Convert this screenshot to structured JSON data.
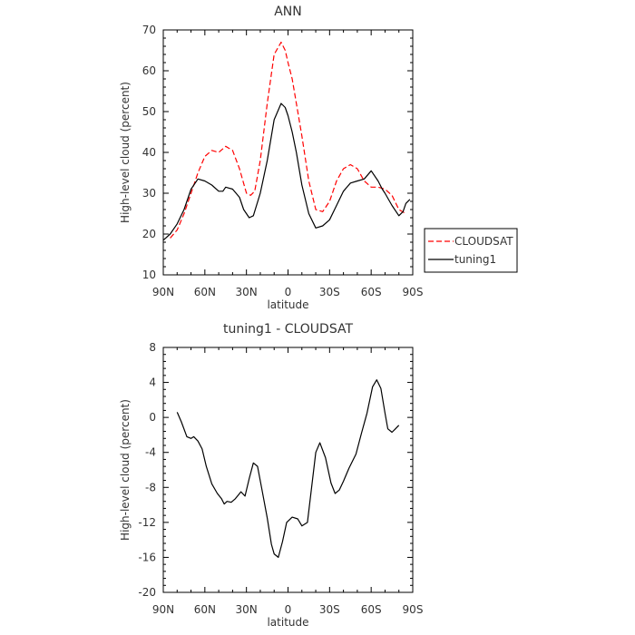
{
  "chart_data": [
    {
      "type": "line",
      "title": "ANN",
      "xlabel": "latitude",
      "ylabel": "High-level cloud (percent)",
      "xlim": [
        90,
        -90
      ],
      "ylim": [
        10,
        70
      ],
      "x_ticks": [
        90,
        60,
        30,
        0,
        -30,
        -60,
        -90
      ],
      "x_tick_labels": [
        "90N",
        "60N",
        "30N",
        "0",
        "30S",
        "60S",
        "90S"
      ],
      "y_ticks": [
        10,
        20,
        30,
        40,
        50,
        60,
        70
      ],
      "y_tick_labels": [
        "10",
        "20",
        "30",
        "40",
        "50",
        "60",
        "70"
      ],
      "legend": {
        "position": "right",
        "entries": [
          "CLOUDSAT",
          "tuning1"
        ]
      },
      "series": [
        {
          "name": "CLOUDSAT",
          "color": "#ff0000",
          "dash": "dashed",
          "x": [
            85,
            80,
            75,
            70,
            65,
            60,
            55,
            50,
            45,
            40,
            35,
            30,
            27,
            24,
            20,
            15,
            10,
            5,
            2,
            0,
            -3,
            -6,
            -10,
            -15,
            -20,
            -25,
            -30,
            -35,
            -40,
            -45,
            -50,
            -55,
            -60,
            -65,
            -70,
            -75,
            -80,
            -85
          ],
          "y": [
            19,
            21,
            25,
            30,
            35,
            39,
            40.5,
            40,
            41.5,
            40.5,
            36,
            30,
            29.5,
            30.5,
            38,
            52,
            64,
            67,
            65,
            62,
            58,
            52,
            44,
            33,
            26,
            25.5,
            28,
            33,
            36,
            37,
            36,
            33,
            31.5,
            31.5,
            31,
            29.5,
            26,
            25
          ]
        },
        {
          "name": "tuning1",
          "color": "#000000",
          "dash": "solid",
          "x": [
            90,
            85,
            80,
            75,
            70,
            65,
            60,
            55,
            50,
            47,
            45,
            40,
            35,
            32,
            28,
            25,
            20,
            15,
            10,
            5,
            2,
            0,
            -3,
            -6,
            -10,
            -15,
            -20,
            -25,
            -30,
            -35,
            -40,
            -45,
            -50,
            -55,
            -60,
            -65,
            -68,
            -70,
            -75,
            -80,
            -83,
            -85,
            -88
          ],
          "y": [
            18.5,
            20,
            22.5,
            26,
            31,
            33.5,
            33,
            32,
            30.5,
            30.5,
            31.5,
            31,
            29,
            26,
            24,
            24.5,
            30,
            38,
            48,
            52,
            51,
            49,
            45,
            40,
            32,
            25,
            21.5,
            22,
            23.5,
            27,
            30.5,
            32.5,
            33,
            33.5,
            35.5,
            33,
            31,
            30,
            27,
            24.5,
            25.5,
            27.5,
            28.5
          ]
        }
      ]
    },
    {
      "type": "line",
      "title": "tuning1 - CLOUDSAT",
      "xlabel": "latitude",
      "ylabel": "High-level cloud (percent)",
      "xlim": [
        90,
        -90
      ],
      "ylim": [
        -20,
        8
      ],
      "x_ticks": [
        90,
        60,
        30,
        0,
        -30,
        -60,
        -90
      ],
      "x_tick_labels": [
        "90N",
        "60N",
        "30N",
        "0",
        "30S",
        "60S",
        "90S"
      ],
      "y_ticks": [
        -20,
        -16,
        -12,
        -8,
        -4,
        0,
        4,
        8
      ],
      "y_tick_labels": [
        "-20",
        "-16",
        "-12",
        "-8",
        "-4",
        "0",
        "4",
        "8"
      ],
      "series": [
        {
          "name": "tuning1",
          "color": "#000000",
          "dash": "solid",
          "x": [
            80,
            77,
            73,
            70,
            68,
            65,
            62,
            59,
            55,
            51,
            48,
            46,
            44,
            41,
            38,
            36,
            34,
            31,
            28,
            25,
            22,
            19,
            15,
            12,
            10,
            7,
            4,
            1,
            -3,
            -7,
            -10,
            -14,
            -17,
            -20,
            -23,
            -27,
            -31,
            -34,
            -37,
            -40,
            -44,
            -49,
            -53,
            -57,
            -61,
            -64,
            -67,
            -70,
            -72,
            -75,
            -77,
            -80
          ],
          "y": [
            0.6,
            -0.5,
            -2.2,
            -2.4,
            -2.2,
            -2.7,
            -3.6,
            -5.6,
            -7.6,
            -8.7,
            -9.3,
            -9.9,
            -9.6,
            -9.7,
            -9.3,
            -8.9,
            -8.5,
            -9.0,
            -7.0,
            -5.2,
            -5.6,
            -8.1,
            -11.5,
            -14.5,
            -15.6,
            -16.0,
            -14.2,
            -12.0,
            -11.4,
            -11.6,
            -12.4,
            -12.0,
            -8.0,
            -4.0,
            -2.9,
            -4.6,
            -7.5,
            -8.7,
            -8.3,
            -7.3,
            -5.8,
            -4.2,
            -1.8,
            0.5,
            3.5,
            4.3,
            3.3,
            0.5,
            -1.3,
            -1.7,
            -1.4,
            -0.9
          ]
        }
      ]
    }
  ]
}
